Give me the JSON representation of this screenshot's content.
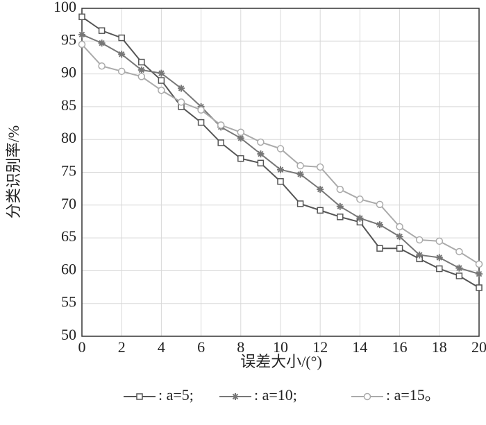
{
  "chart_data": {
    "type": "line",
    "x_label": "误差大小/(°)",
    "y_label": "分类识别率/%",
    "x": [
      0,
      1,
      2,
      3,
      4,
      5,
      6,
      7,
      8,
      9,
      10,
      11,
      12,
      13,
      14,
      15,
      16,
      17,
      18,
      19,
      20
    ],
    "xlim": [
      0,
      20
    ],
    "xticks": [
      0,
      2,
      4,
      6,
      8,
      10,
      12,
      14,
      16,
      18,
      20
    ],
    "ylim": [
      50,
      100
    ],
    "yticks": [
      50,
      55,
      60,
      65,
      70,
      75,
      80,
      85,
      90,
      95,
      100
    ],
    "grid": true,
    "legend": "bottom",
    "series": [
      {
        "name": ": a=5;",
        "color": "#555555",
        "marker": "square",
        "values": [
          98.7,
          96.6,
          95.5,
          91.8,
          89.0,
          85.0,
          82.6,
          79.5,
          77.1,
          76.4,
          73.6,
          70.2,
          69.2,
          68.2,
          67.4,
          63.4,
          63.4,
          61.8,
          60.3,
          59.2,
          57.4
        ]
      },
      {
        "name": ": a=10;",
        "color": "#777777",
        "marker": "star",
        "values": [
          96.0,
          94.7,
          93.0,
          90.6,
          90.1,
          87.8,
          85.0,
          81.9,
          80.2,
          77.8,
          75.4,
          74.7,
          72.4,
          69.8,
          68.0,
          67.0,
          65.2,
          62.4,
          62.0,
          60.4,
          59.5
        ]
      },
      {
        "name": ": a=15。",
        "color": "#aaaaaa",
        "marker": "circle",
        "values": [
          94.5,
          91.2,
          90.4,
          89.6,
          87.5,
          85.7,
          84.5,
          82.2,
          81.1,
          79.6,
          78.6,
          76.0,
          75.8,
          72.4,
          70.9,
          70.1,
          66.7,
          64.7,
          64.5,
          62.9,
          61.0
        ]
      }
    ]
  }
}
